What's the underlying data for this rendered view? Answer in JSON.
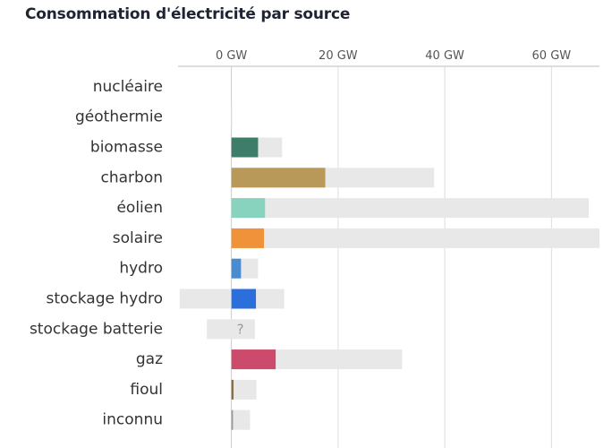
{
  "chart_data": {
    "type": "bar",
    "title": "Consommation d'électricité par source",
    "unit": "GW",
    "xlim": [
      -10,
      69
    ],
    "ticks": [
      {
        "value": 0,
        "label": "0 GW"
      },
      {
        "value": 20,
        "label": "20 GW"
      },
      {
        "value": 40,
        "label": "40 GW"
      },
      {
        "value": 60,
        "label": "60 GW"
      }
    ],
    "grid": true,
    "categories": [
      "nucléaire",
      "géothermie",
      "biomasse",
      "charbon",
      "éolien",
      "solaire",
      "hydro",
      "stockage hydro",
      "stockage batterie",
      "gaz",
      "fioul",
      "inconnu"
    ],
    "values": [
      0,
      0,
      5,
      17.6,
      6.3,
      6.1,
      1.8,
      4.6,
      0,
      8.3,
      0.4,
      0.3
    ],
    "capacity_range": [
      [
        0,
        0
      ],
      [
        0,
        0.1
      ],
      [
        0,
        9.5
      ],
      [
        0,
        38
      ],
      [
        0,
        67
      ],
      [
        0,
        69
      ],
      [
        0,
        5
      ],
      [
        -9.7,
        9.9
      ],
      [
        -4.6,
        4.4
      ],
      [
        0,
        32
      ],
      [
        0,
        4.7
      ],
      [
        0,
        3.5
      ]
    ],
    "colors": [
      "#7f4ba6",
      "#9e3b2b",
      "#3e7d6a",
      "#b8995a",
      "#87d3be",
      "#f0923a",
      "#4a8cd2",
      "#2a6fdb",
      "#9a9a9a",
      "#cc4a6c",
      "#8b6e4a",
      "#999999"
    ],
    "unknown_marker": [
      {
        "category": "stockage batterie",
        "text": "?"
      }
    ]
  }
}
